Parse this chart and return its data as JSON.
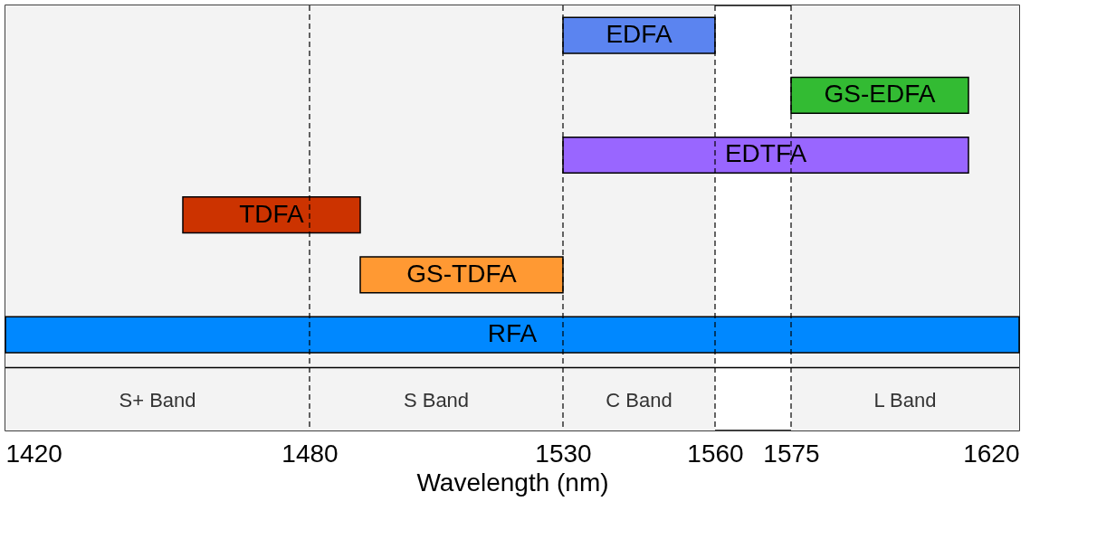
{
  "chart_data": {
    "type": "bar",
    "orientation": "horizontal",
    "xlabel": "Wavelength  (nm)",
    "categories": [
      "EDFA",
      "GS-EDFA",
      "EDTFA",
      "TDFA",
      "GS-TDFA",
      "RFA"
    ],
    "base": [
      1530,
      1575,
      1530,
      1455,
      1490,
      1420
    ],
    "values": [
      30,
      35,
      80,
      35,
      40,
      200
    ],
    "colors": [
      "#5b84f0",
      "#33bb33",
      "#9966ff",
      "#cc3300",
      "#ff9933",
      "#0088ff"
    ],
    "xlim": [
      1420,
      1620
    ],
    "xticks": [
      1420,
      1480,
      1530,
      1560,
      1575,
      1620
    ],
    "grid": false,
    "ref_lines": [
      {
        "axis": "x",
        "value": 1480,
        "line_style": "dashed"
      },
      {
        "axis": "x",
        "value": 1530,
        "line_style": "dashed"
      },
      {
        "axis": "x",
        "value": 1560,
        "line_style": "dashed"
      },
      {
        "axis": "x",
        "value": 1575,
        "line_style": "dashed"
      }
    ],
    "bands": [
      {
        "axis": "x",
        "from": 1420,
        "to": 1480,
        "label": "S+ Band",
        "color": "#f3f3f3"
      },
      {
        "axis": "x",
        "from": 1480,
        "to": 1530,
        "label": "S Band",
        "color": "#f3f3f3"
      },
      {
        "axis": "x",
        "from": 1530,
        "to": 1560,
        "label": "C Band",
        "color": "#f3f3f3"
      },
      {
        "axis": "x",
        "from": 1575,
        "to": 1620,
        "label": "L Band",
        "color": "#f3f3f3"
      }
    ]
  }
}
